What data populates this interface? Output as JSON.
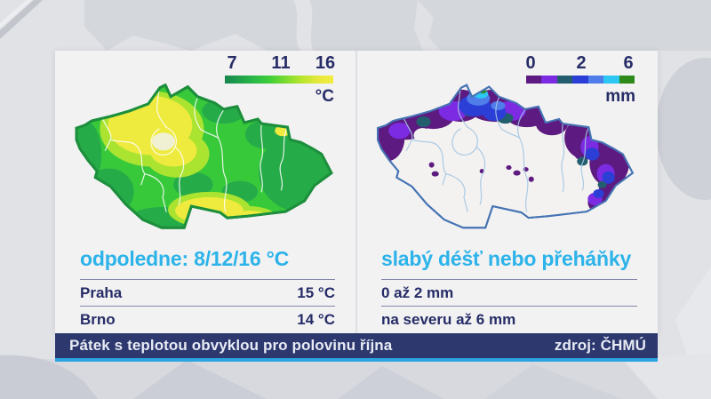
{
  "temperature_panel": {
    "legend": {
      "ticks": [
        "7",
        "11",
        "16"
      ],
      "unit": "°C"
    },
    "headline": "odpoledne: 8/12/16 °C",
    "rows": [
      {
        "label": "Praha",
        "value": "15 °C"
      },
      {
        "label": "Brno",
        "value": "14 °C"
      }
    ]
  },
  "precipitation_panel": {
    "legend": {
      "ticks": [
        "0",
        "2",
        "6"
      ],
      "unit": "mm"
    },
    "headline": "slabý déšť nebo přeháňky",
    "rows": [
      {
        "label": "0 až 2 mm",
        "value": ""
      },
      {
        "label": "na severu až 6 mm",
        "value": ""
      }
    ]
  },
  "footer": {
    "title": "Pátek s teplotou obvyklou pro polovinu října",
    "source": "zdroj: ČHMÚ"
  },
  "colors": {
    "accent_cyan": "#2cb3e9",
    "navy_text": "#262c66",
    "footer_bar": "#2c386e",
    "footer_underline": "#2ba4e2",
    "temp_scale": [
      "#17884d",
      "#21a24b",
      "#2bbc47",
      "#44cf38",
      "#7fdd2e",
      "#b9e52f",
      "#e6e93d",
      "#f2ea3e"
    ],
    "precip_scale": [
      "#5d1a80",
      "#7d2be2",
      "#235e6e",
      "#2b3fd6",
      "#4f7dea",
      "#2cc7f2",
      "#2f8a1c"
    ]
  }
}
